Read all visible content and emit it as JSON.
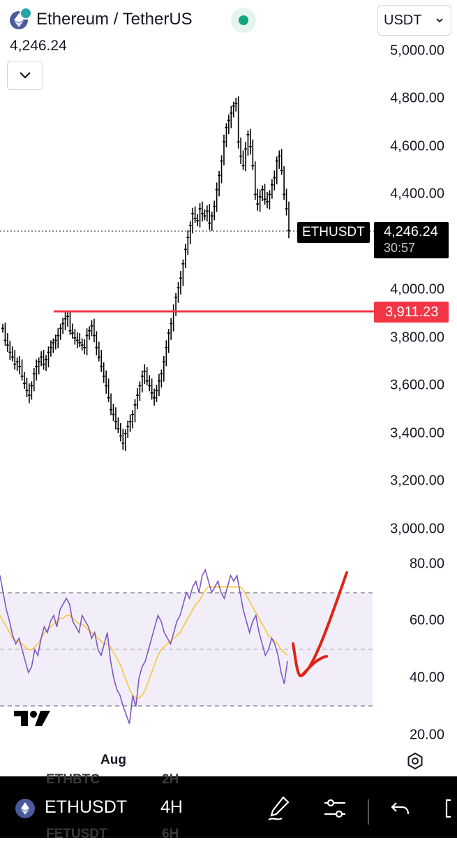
{
  "header": {
    "title": "Ethereum / TetherUS",
    "last_price": "4,246.24",
    "currency": "USDT"
  },
  "price_axis": {
    "labels": [
      "5,000.00",
      "4,800.00",
      "4,600.00",
      "4,400.00",
      "4,000.00",
      "3,800.00",
      "3,600.00",
      "3,400.00",
      "3,200.00",
      "3,000.00"
    ]
  },
  "price_tag": {
    "symbol": "ETHUSDT",
    "value": "4,246.24",
    "countdown": "30:57"
  },
  "level_tag": {
    "value": "3,911.23",
    "color": "#f23645"
  },
  "rsi_axis": {
    "labels": [
      "80.00",
      "60.00",
      "40.00",
      "20.00"
    ]
  },
  "time_axis": {
    "label": "Aug"
  },
  "bottom_bar": {
    "symbol": "ETHUSDT",
    "timeframe": "4H",
    "ghost_symbols": [
      "ETHBTC",
      "FETUSDT"
    ],
    "ghost_timeframes": [
      "2H",
      "6H"
    ]
  },
  "chart_data": {
    "type": "line",
    "title": "",
    "price_range": [
      3000,
      5000
    ],
    "rsi_range": [
      20,
      80
    ],
    "close": [
      3840,
      3790,
      3770,
      3740,
      3720,
      3690,
      3700,
      3680,
      3640,
      3610,
      3580,
      3560,
      3600,
      3650,
      3680,
      3700,
      3720,
      3690,
      3710,
      3740,
      3760,
      3780,
      3790,
      3810,
      3840,
      3860,
      3880,
      3890,
      3830,
      3820,
      3800,
      3790,
      3780,
      3770,
      3760,
      3810,
      3830,
      3850,
      3810,
      3760,
      3720,
      3680,
      3640,
      3600,
      3550,
      3500,
      3480,
      3450,
      3420,
      3390,
      3360,
      3400,
      3430,
      3450,
      3480,
      3520,
      3560,
      3600,
      3640,
      3660,
      3620,
      3600,
      3570,
      3550,
      3580,
      3620,
      3650,
      3700,
      3760,
      3820,
      3860,
      3910,
      3970,
      4010,
      4050,
      4110,
      4170,
      4220,
      4270,
      4320,
      4300,
      4290,
      4340,
      4320,
      4310,
      4330,
      4280,
      4310,
      4350,
      4420,
      4480,
      4540,
      4620,
      4680,
      4710,
      4740,
      4770,
      4780,
      4620,
      4560,
      4520,
      4590,
      4650,
      4600,
      4520,
      4400,
      4360,
      4390,
      4420,
      4380,
      4370,
      4400,
      4440,
      4470,
      4540,
      4560,
      4500,
      4400,
      4340,
      4250
    ],
    "rsi": [
      76,
      70,
      64,
      60,
      55,
      52,
      54,
      50,
      46,
      42,
      44,
      50,
      48,
      54,
      58,
      56,
      60,
      62,
      58,
      64,
      66,
      68,
      66,
      60,
      58,
      56,
      62,
      60,
      58,
      54,
      56,
      50,
      48,
      52,
      56,
      46,
      40,
      36,
      34,
      30,
      27,
      24,
      34,
      30,
      40,
      44,
      46,
      50,
      54,
      58,
      62,
      60,
      56,
      54,
      52,
      56,
      60,
      62,
      66,
      70,
      68,
      72,
      74,
      70,
      76,
      78,
      74,
      70,
      72,
      74,
      70,
      68,
      72,
      76,
      74,
      76,
      70,
      64,
      60,
      56,
      60,
      62,
      56,
      52,
      48,
      50,
      54,
      52,
      48,
      42,
      38,
      46
    ],
    "rsi_ma": [
      62,
      60,
      58,
      56,
      54,
      53,
      53,
      52,
      51,
      50,
      50,
      51,
      52,
      54,
      56,
      57,
      58,
      59,
      60,
      61,
      61,
      62,
      62,
      61,
      60,
      59,
      59,
      58,
      57,
      56,
      55,
      54,
      53,
      52,
      52,
      51,
      49,
      47,
      45,
      42,
      39,
      36,
      34,
      33,
      33,
      34,
      36,
      39,
      42,
      45,
      48,
      50,
      51,
      52,
      53,
      54,
      55,
      56,
      58,
      60,
      62,
      64,
      66,
      67,
      69,
      71,
      72,
      72,
      72,
      72,
      72,
      72,
      72,
      72,
      72,
      72,
      72,
      71,
      69,
      67,
      65,
      63,
      61,
      59,
      57,
      55,
      54,
      53,
      52,
      50,
      49,
      48
    ],
    "series": [
      {
        "values": [
          3911.23
        ]
      }
    ]
  }
}
